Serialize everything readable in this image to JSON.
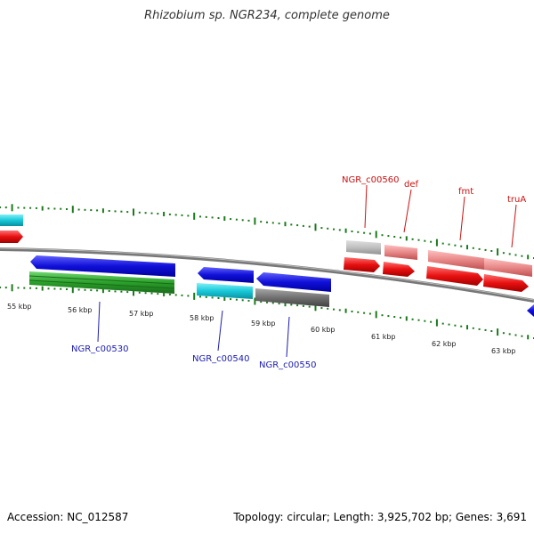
{
  "header": {
    "title": "Rhizobium sp. NGR234, complete genome"
  },
  "footer": {
    "accession": "Accession: NC_012587",
    "summary": "Topology: circular; Length: 3,925,702 bp; Genes: 3,691"
  },
  "ruler": {
    "labels": [
      "55 kbp",
      "56 kbp",
      "57 kbp",
      "58 kbp",
      "59 kbp",
      "60 kbp",
      "61 kbp",
      "62 kbp",
      "63 kbp"
    ]
  },
  "gene_labels": {
    "below": [
      "NGR_c00530",
      "NGR_c00540",
      "NGR_c00550"
    ],
    "above": [
      "NGR_c00560",
      "def",
      "fmt",
      "truA"
    ]
  },
  "colors": {
    "blue": "#1010d8",
    "green": "#2aa02a",
    "cyan": "#18c8d8",
    "gray": "#707070",
    "red": "#e81010",
    "pink": "#e88888",
    "tick": "#1a7a1a",
    "backbone": "#888888"
  }
}
